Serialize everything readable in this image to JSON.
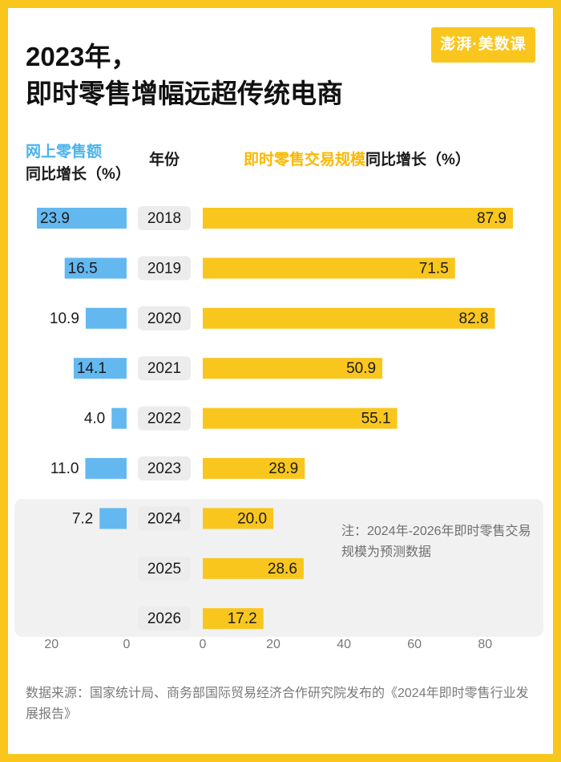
{
  "header": {
    "title_line1": "2023年，",
    "title_line2": "即时零售增幅远超传统电商",
    "logo": "澎湃·美数课"
  },
  "legend": {
    "left_line1": "网上零售额",
    "left_line2": "同比增长（%）",
    "year_header": "年份",
    "right_highlight": "即时零售交易规模",
    "right_rest": "同比增长（%）"
  },
  "note": "注：2024年-2026年即时零售交易规模为预测数据",
  "source": "数据来源：国家统计局、商务部国际贸易经济合作研究院发布的《2024年即时零售行业发展报告》",
  "colors": {
    "blue": "#64B8F0",
    "yellow": "#F9C61E",
    "frame": "#F9C61E",
    "year_pill": "#ECECEC"
  },
  "chart_data": {
    "type": "bar",
    "orientation": "horizontal-diverging",
    "categories": [
      "2018",
      "2019",
      "2020",
      "2021",
      "2022",
      "2023",
      "2024",
      "2025",
      "2026"
    ],
    "series": [
      {
        "name": "网上零售额同比增长（%）",
        "values": [
          23.9,
          16.5,
          10.9,
          14.1,
          4.0,
          11.0,
          7.2,
          null,
          null
        ],
        "labels": [
          "23.9",
          "16.5",
          "10.9",
          "14.1",
          "4.0",
          "11.0",
          "7.2",
          "",
          ""
        ],
        "direction": "left",
        "xlim": [
          0,
          20
        ],
        "ticks": [
          "20",
          "0"
        ]
      },
      {
        "name": "即时零售交易规模同比增长（%）",
        "values": [
          87.9,
          71.5,
          82.8,
          50.9,
          55.1,
          28.9,
          20.0,
          28.6,
          17.2
        ],
        "labels": [
          "87.9",
          "71.5",
          "82.8",
          "50.9",
          "55.1",
          "28.9",
          "20.0",
          "28.6",
          "17.2"
        ],
        "direction": "right",
        "xlim": [
          0,
          80
        ],
        "ticks": [
          "0",
          "20",
          "40",
          "60",
          "80"
        ]
      }
    ],
    "forecast_years": [
      "2024",
      "2025",
      "2026"
    ]
  }
}
